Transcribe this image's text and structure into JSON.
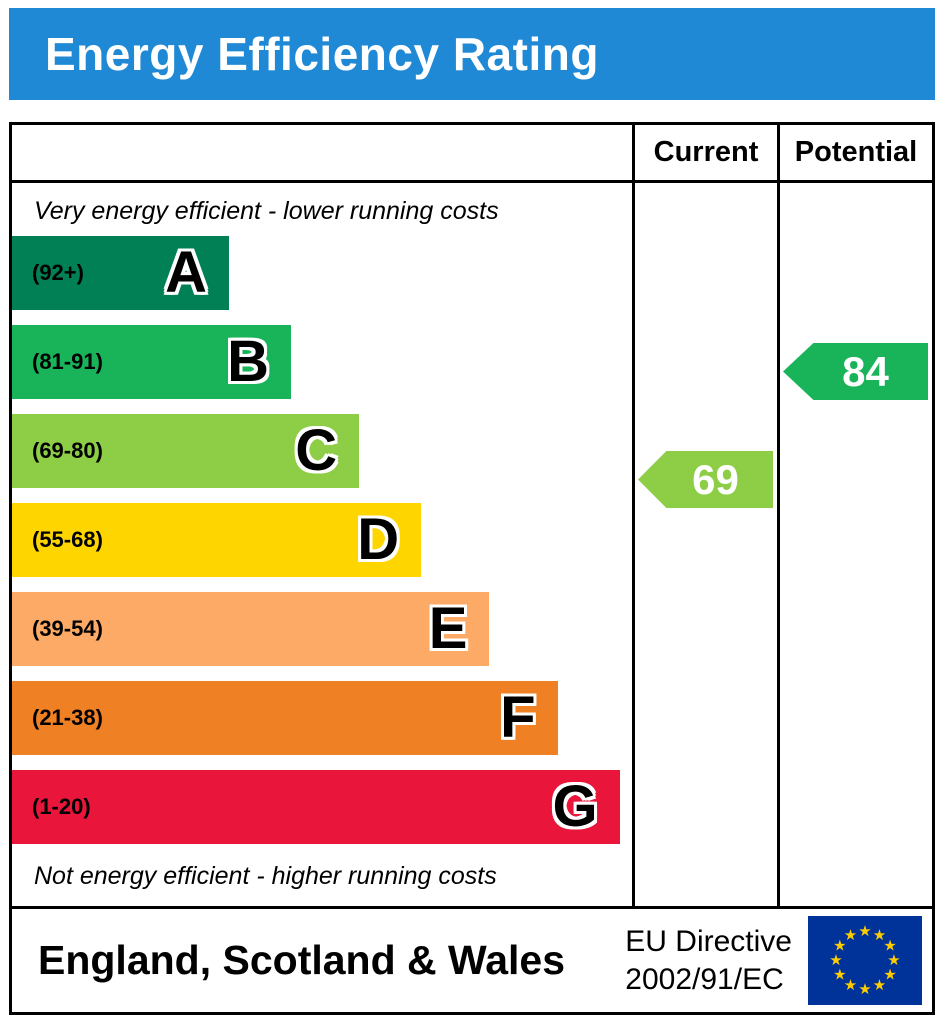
{
  "header": {
    "title": "Energy Efficiency Rating",
    "bg_color": "#2089d5",
    "text_color": "#ffffff"
  },
  "columns": {
    "current": "Current",
    "potential": "Potential"
  },
  "notes": {
    "top": "Very energy efficient - lower running costs",
    "bottom": "Not energy efficient - higher running costs"
  },
  "chart_data": {
    "type": "bar",
    "title": "Energy Efficiency Rating",
    "bands": [
      {
        "letter": "A",
        "range": "(92+)",
        "color": "#008054",
        "width_pct": 35
      },
      {
        "letter": "B",
        "range": "(81-91)",
        "color": "#19b459",
        "width_pct": 45
      },
      {
        "letter": "C",
        "range": "(69-80)",
        "color": "#8dce46",
        "width_pct": 56
      },
      {
        "letter": "D",
        "range": "(55-68)",
        "color": "#ffd500",
        "width_pct": 66
      },
      {
        "letter": "E",
        "range": "(39-54)",
        "color": "#fcaa65",
        "width_pct": 77
      },
      {
        "letter": "F",
        "range": "(21-38)",
        "color": "#ef8023",
        "width_pct": 88
      },
      {
        "letter": "G",
        "range": "(1-20)",
        "color": "#e9153b",
        "width_pct": 98
      }
    ],
    "ratings": {
      "current": {
        "value": 69,
        "band": "C",
        "color": "#8dce46"
      },
      "potential": {
        "value": 84,
        "band": "B",
        "color": "#19b459"
      }
    }
  },
  "footer": {
    "region": "England, Scotland & Wales",
    "directive_line1": "EU Directive",
    "directive_line2": "2002/91/EC",
    "eu_flag": {
      "bg_color": "#003399",
      "star_color": "#ffcc00"
    }
  }
}
